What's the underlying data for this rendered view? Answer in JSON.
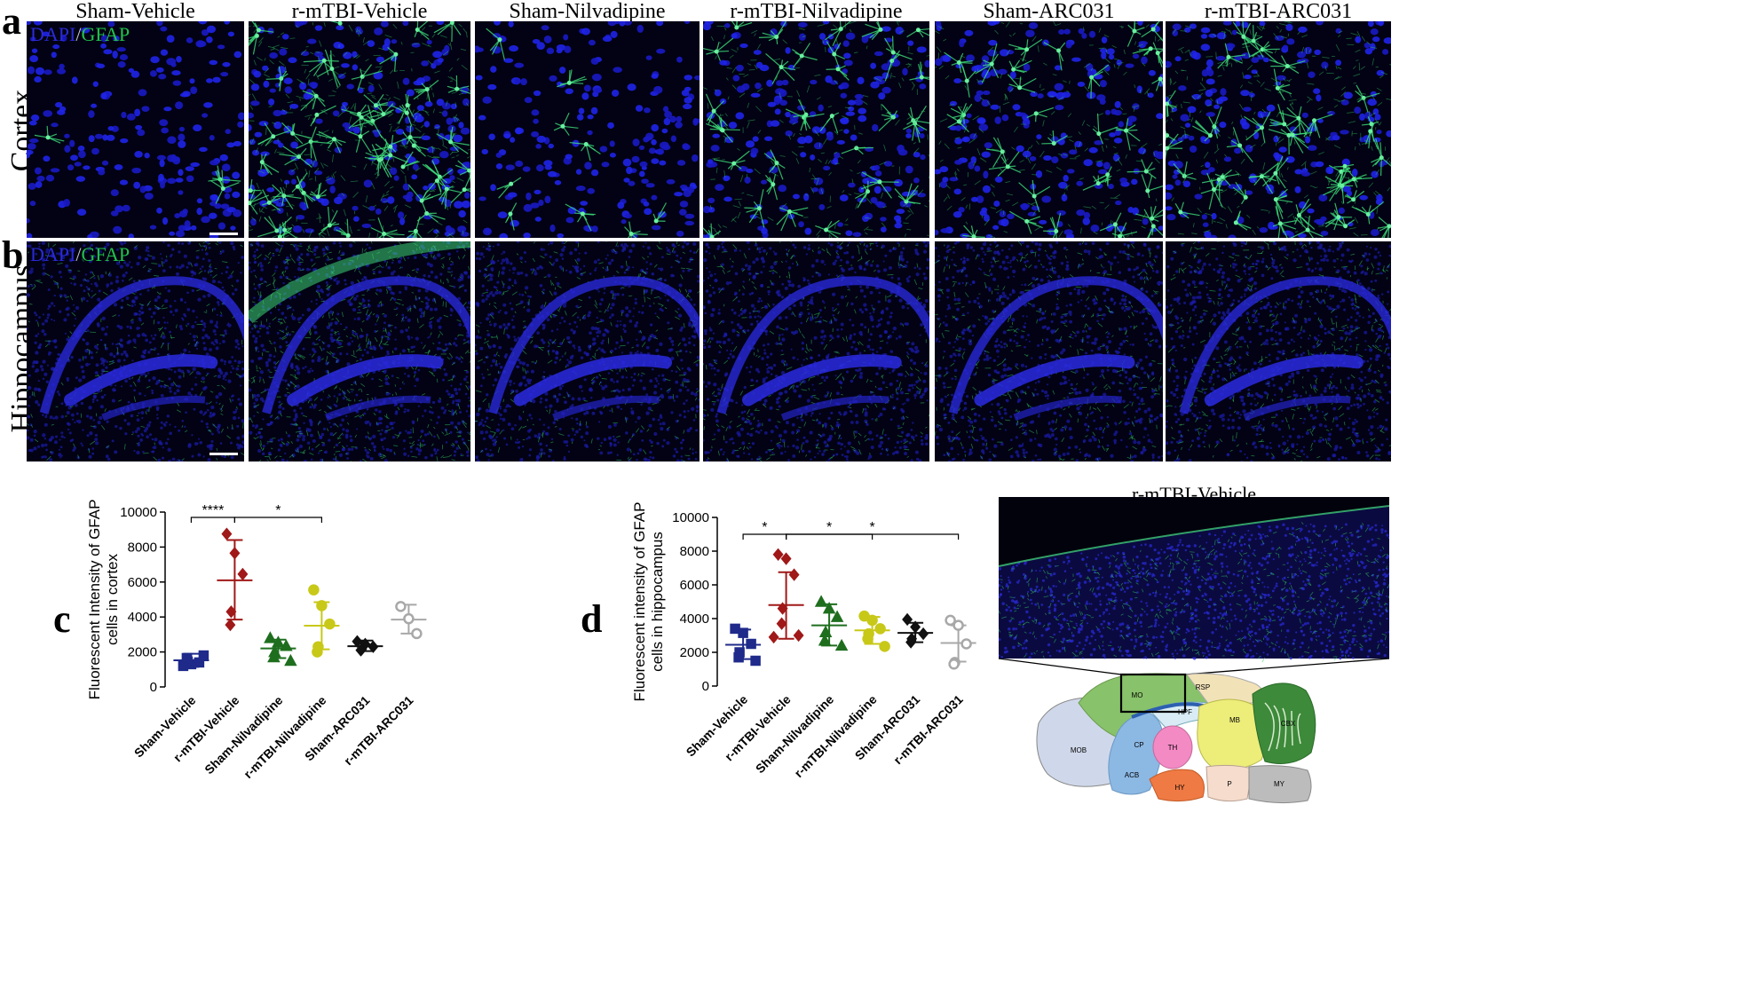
{
  "panels": {
    "a": "a",
    "b": "b",
    "c": "c",
    "d1": "d",
    "d2": "d"
  },
  "column_titles": [
    "Sham-Vehicle",
    "r-mTBI-Vehicle",
    "Sham-Nilvadipine",
    "r-mTBI-Nilvadipine",
    "Sham-ARC031",
    "r-mTBI-ARC031"
  ],
  "row_titles": {
    "cortex": "Cortex",
    "hippocampus": "Hippocampus"
  },
  "stain_label": {
    "dapi": "DAPI",
    "slash": "/",
    "gfap": "GFAP"
  },
  "inset_title": "r-mTBI-Vehicle",
  "brain_regions": [
    "MO",
    "RSP",
    "HPF",
    "MB",
    "CBX",
    "CP",
    "TH",
    "MOB",
    "ACB",
    "HY",
    "P",
    "MY"
  ],
  "colors": {
    "dapi": "#1a1aff",
    "gfap": "#2fd060",
    "sham_vehicle": "#1f2a8a",
    "rmtbi_vehicle": "#a01818",
    "sham_nilvadipine": "#1e6e1e",
    "rmtbi_nilvadipine": "#c8c818",
    "sham_arc031": "#111111",
    "rmtbi_arc031": "#a8a8a8"
  },
  "chart_data": [
    {
      "type": "scatter",
      "panel": "c",
      "ylabel": "Fluorescent Intensity of GFAP cells in cortex",
      "ylabel_lines": [
        "Fluorescent Intensity of GFAP",
        "cells in cortex"
      ],
      "categories": [
        "Sham-Vehicle",
        "r-mTBI-Vehicle",
        "Sham-Nilvadipine",
        "r-mTBI-Nilvadipine",
        "Sham-ARC031",
        "r-mTBI-ARC031"
      ],
      "ylim": [
        0,
        10000
      ],
      "yticks": [
        0,
        2000,
        4000,
        6000,
        8000,
        10000
      ],
      "series": [
        {
          "name": "Sham-Vehicle",
          "marker": "square",
          "filled": true,
          "mean": 1520,
          "sd_low": 1150,
          "sd_high": 1900,
          "points": [
            1200,
            1300,
            1400,
            1450,
            1650,
            1800
          ]
        },
        {
          "name": "r-mTBI-Vehicle",
          "marker": "diamond",
          "filled": true,
          "mean": 6100,
          "sd_low": 3850,
          "sd_high": 8400,
          "points": [
            8750,
            7650,
            6450,
            4300,
            3550
          ]
        },
        {
          "name": "Sham-Nilvadipine",
          "marker": "triangle",
          "filled": true,
          "mean": 2200,
          "sd_low": 1650,
          "sd_high": 2700,
          "points": [
            2800,
            2550,
            2350,
            2000,
            1700,
            1500
          ]
        },
        {
          "name": "r-mTBI-Nilvadipine",
          "marker": "circle",
          "filled": true,
          "mean": 3500,
          "sd_low": 2150,
          "sd_high": 4850,
          "points": [
            5550,
            4650,
            3600,
            2300,
            2000
          ]
        },
        {
          "name": "Sham-ARC031",
          "marker": "diamond",
          "filled": true,
          "mean": 2330,
          "sd_low": 2050,
          "sd_high": 2650,
          "points": [
            2600,
            2450,
            2300,
            2150,
            2100
          ]
        },
        {
          "name": "r-mTBI-ARC031",
          "marker": "circle",
          "filled": false,
          "mean": 3850,
          "sd_low": 3050,
          "sd_high": 4700,
          "points": [
            4600,
            3900,
            3050
          ]
        }
      ],
      "significance": [
        {
          "from": 0,
          "to": 1,
          "label": "****",
          "y": 10000
        },
        {
          "from": 1,
          "to": 3,
          "label": "*",
          "y": 10000
        }
      ]
    },
    {
      "type": "scatter",
      "panel": "d",
      "ylabel": "Fluorescent intensity of GFAP cells in hippocampus",
      "ylabel_lines": [
        "Fluorescent intensity of GFAP",
        "cells in hippocampus"
      ],
      "categories": [
        "Sham-Vehicle",
        "r-mTBI-Vehicle",
        "Sham-Nilvadipine",
        "r-mTBI-Nilvadipine",
        "Sham-ARC031",
        "r-mTBI-ARC031"
      ],
      "ylim": [
        0,
        10000
      ],
      "yticks": [
        0,
        2000,
        4000,
        6000,
        8000,
        10000
      ],
      "series": [
        {
          "name": "Sham-Vehicle",
          "marker": "square",
          "filled": true,
          "mean": 2450,
          "sd_low": 1600,
          "sd_high": 3350,
          "points": [
            3400,
            3150,
            2500,
            2000,
            1700,
            1500
          ]
        },
        {
          "name": "r-mTBI-Vehicle",
          "marker": "diamond",
          "filled": true,
          "mean": 4800,
          "sd_low": 2800,
          "sd_high": 6750,
          "points": [
            7800,
            7550,
            6600,
            4600,
            3700,
            3000,
            2900
          ]
        },
        {
          "name": "Sham-Nilvadipine",
          "marker": "triangle",
          "filled": true,
          "mean": 3600,
          "sd_low": 2400,
          "sd_high": 4850,
          "points": [
            5000,
            4600,
            4100,
            3200,
            2700,
            2400
          ]
        },
        {
          "name": "r-mTBI-Nilvadipine",
          "marker": "circle",
          "filled": true,
          "mean": 3300,
          "sd_low": 2500,
          "sd_high": 4100,
          "points": [
            4150,
            3900,
            3400,
            3100,
            2800,
            2350
          ]
        },
        {
          "name": "Sham-ARC031",
          "marker": "diamond",
          "filled": true,
          "mean": 3150,
          "sd_low": 2600,
          "sd_high": 3750,
          "points": [
            3950,
            3500,
            3100,
            2800,
            2600
          ]
        },
        {
          "name": "r-mTBI-ARC031",
          "marker": "circle",
          "filled": false,
          "mean": 2550,
          "sd_low": 1450,
          "sd_high": 3600,
          "points": [
            3900,
            3600,
            2500,
            1400,
            1300
          ]
        }
      ],
      "significance": [
        {
          "from": 0,
          "to": 1,
          "label": "*",
          "y": 9000
        },
        {
          "from": 1,
          "to": 3,
          "label": "*",
          "y": 9000
        },
        {
          "from": 1,
          "to": 5,
          "label": "*",
          "y": 9000
        }
      ]
    }
  ]
}
